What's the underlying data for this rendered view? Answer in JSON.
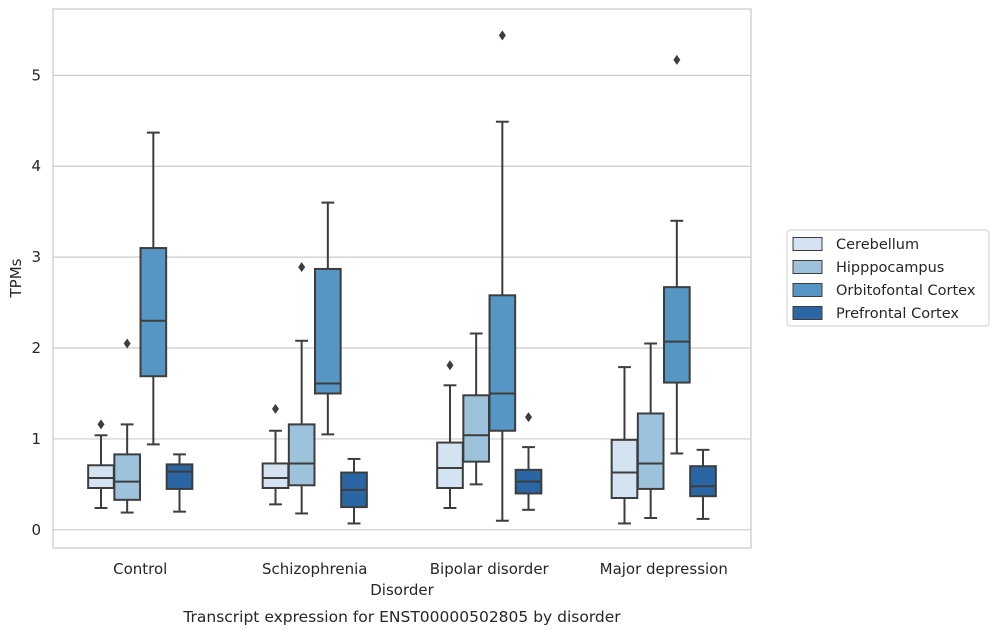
{
  "chart_data": {
    "type": "box",
    "title": "Transcript expression for ENST00000502805 by disorder",
    "xlabel": "Disorder",
    "ylabel": "TPMs",
    "ylim": [
      -0.2,
      5.73
    ],
    "yticks": [
      0,
      1,
      2,
      3,
      4,
      5
    ],
    "grid": "horizontal",
    "legend_position": "right",
    "categories": [
      "Control",
      "Schizophrenia",
      "Bipolar disorder",
      "Major depression"
    ],
    "series": [
      {
        "name": "Cerebellum",
        "color": "#d4e3f2",
        "boxes": [
          {
            "whisker_low": 0.24,
            "q1": 0.46,
            "median": 0.57,
            "q3": 0.71,
            "whisker_high": 1.04,
            "outliers": [
              1.16
            ]
          },
          {
            "whisker_low": 0.28,
            "q1": 0.46,
            "median": 0.57,
            "q3": 0.73,
            "whisker_high": 1.09,
            "outliers": [
              1.33
            ]
          },
          {
            "whisker_low": 0.24,
            "q1": 0.46,
            "median": 0.68,
            "q3": 0.96,
            "whisker_high": 1.59,
            "outliers": [
              1.81
            ]
          },
          {
            "whisker_low": 0.07,
            "q1": 0.35,
            "median": 0.63,
            "q3": 0.99,
            "whisker_high": 1.79,
            "outliers": []
          }
        ]
      },
      {
        "name": "Hipppocampus",
        "color": "#9cc2dc",
        "boxes": [
          {
            "whisker_low": 0.19,
            "q1": 0.33,
            "median": 0.53,
            "q3": 0.83,
            "whisker_high": 1.16,
            "outliers": [
              2.05
            ]
          },
          {
            "whisker_low": 0.18,
            "q1": 0.49,
            "median": 0.73,
            "q3": 1.16,
            "whisker_high": 2.08,
            "outliers": [
              2.89
            ]
          },
          {
            "whisker_low": 0.5,
            "q1": 0.75,
            "median": 1.04,
            "q3": 1.48,
            "whisker_high": 2.16,
            "outliers": []
          },
          {
            "whisker_low": 0.13,
            "q1": 0.45,
            "median": 0.73,
            "q3": 1.28,
            "whisker_high": 2.05,
            "outliers": []
          }
        ]
      },
      {
        "name": "Orbitofontal Cortex",
        "color": "#5696c5",
        "boxes": [
          {
            "whisker_low": 0.94,
            "q1": 1.69,
            "median": 2.3,
            "q3": 3.1,
            "whisker_high": 4.37,
            "outliers": []
          },
          {
            "whisker_low": 1.05,
            "q1": 1.5,
            "median": 1.61,
            "q3": 2.87,
            "whisker_high": 3.6,
            "outliers": []
          },
          {
            "whisker_low": 0.1,
            "q1": 1.09,
            "median": 1.5,
            "q3": 2.58,
            "whisker_high": 4.49,
            "outliers": [
              5.44
            ]
          },
          {
            "whisker_low": 0.84,
            "q1": 1.62,
            "median": 2.07,
            "q3": 2.67,
            "whisker_high": 3.4,
            "outliers": [
              5.17
            ]
          }
        ]
      },
      {
        "name": "Prefrontal Cortex",
        "color": "#2a66a3",
        "boxes": [
          {
            "whisker_low": 0.2,
            "q1": 0.45,
            "median": 0.64,
            "q3": 0.72,
            "whisker_high": 0.83,
            "outliers": []
          },
          {
            "whisker_low": 0.07,
            "q1": 0.25,
            "median": 0.44,
            "q3": 0.63,
            "whisker_high": 0.78,
            "outliers": []
          },
          {
            "whisker_low": 0.22,
            "q1": 0.4,
            "median": 0.53,
            "q3": 0.66,
            "whisker_high": 0.91,
            "outliers": [
              1.24
            ]
          },
          {
            "whisker_low": 0.12,
            "q1": 0.37,
            "median": 0.48,
            "q3": 0.7,
            "whisker_high": 0.88,
            "outliers": []
          }
        ]
      }
    ]
  }
}
